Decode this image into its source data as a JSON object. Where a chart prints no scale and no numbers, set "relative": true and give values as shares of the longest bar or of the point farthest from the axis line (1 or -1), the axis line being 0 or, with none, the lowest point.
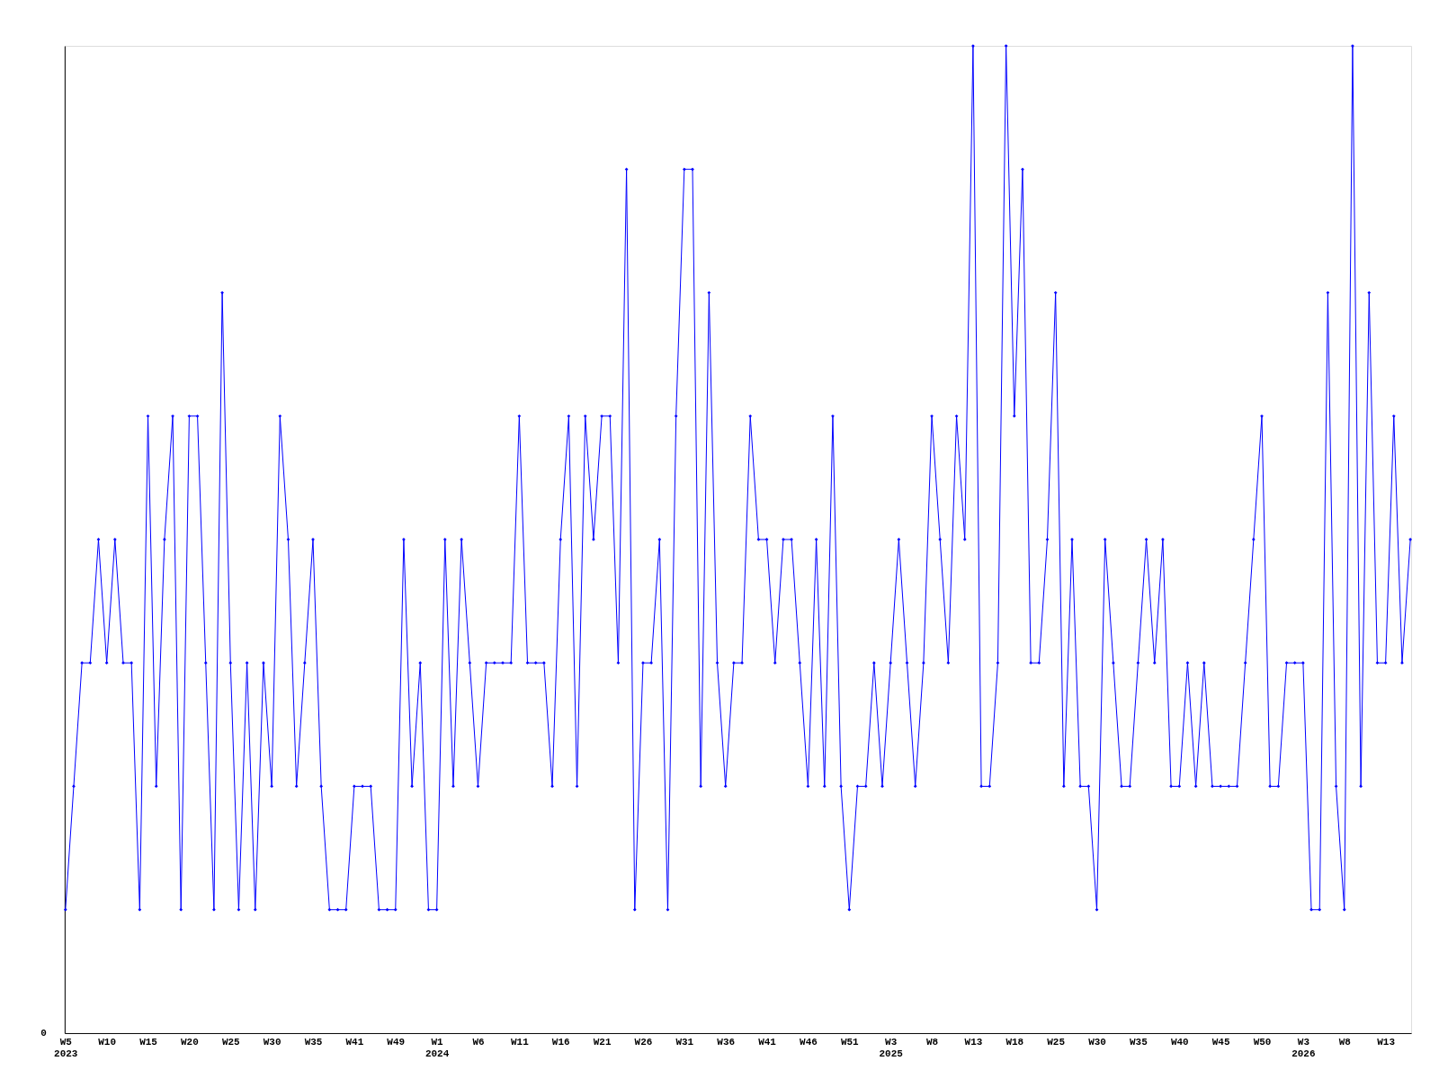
{
  "chart_data": {
    "type": "line",
    "relative": true,
    "marker": "diamond",
    "line_style": "solid",
    "grid": false,
    "categories": [
      "W5\n2023",
      null,
      null,
      null,
      null,
      "W10",
      null,
      null,
      null,
      null,
      "W15",
      null,
      null,
      null,
      null,
      "W20",
      null,
      null,
      null,
      null,
      "W25",
      null,
      null,
      null,
      null,
      "W30",
      null,
      null,
      null,
      null,
      "W35",
      null,
      null,
      null,
      null,
      "W41",
      null,
      null,
      null,
      null,
      "W49",
      null,
      null,
      null,
      null,
      "W1\n2024",
      null,
      null,
      null,
      null,
      "W6",
      null,
      null,
      null,
      null,
      "W11",
      null,
      null,
      null,
      null,
      "W16",
      null,
      null,
      null,
      null,
      "W21",
      null,
      null,
      null,
      null,
      "W26",
      null,
      null,
      null,
      null,
      "W31",
      null,
      null,
      null,
      null,
      "W36",
      null,
      null,
      null,
      null,
      "W41",
      null,
      null,
      null,
      null,
      "W46",
      null,
      null,
      null,
      null,
      "W51",
      null,
      null,
      null,
      null,
      "W3\n2025",
      null,
      null,
      null,
      null,
      "W8",
      null,
      null,
      null,
      null,
      "W13",
      null,
      null,
      null,
      null,
      "W18",
      null,
      null,
      null,
      null,
      "W25",
      null,
      null,
      null,
      null,
      "W30",
      null,
      null,
      null,
      null,
      "W35",
      null,
      null,
      null,
      null,
      "W40",
      null,
      null,
      null,
      null,
      "W45",
      null,
      null,
      null,
      null,
      "W50",
      null,
      null,
      null,
      null,
      "W3\n2026",
      null,
      null,
      null,
      null,
      "W8",
      null,
      null,
      null,
      null,
      "W13",
      null,
      null,
      null
    ],
    "series": [
      {
        "color": "#0000ff",
        "values": [
          0.125,
          0.25,
          0.375,
          0.375,
          0.5,
          0.375,
          0.5,
          0.375,
          0.375,
          0.125,
          0.625,
          0.25,
          0.5,
          0.625,
          0.125,
          0.625,
          0.625,
          0.375,
          0.125,
          0.75,
          0.375,
          0.125,
          0.375,
          0.125,
          0.375,
          0.25,
          0.625,
          0.5,
          0.25,
          0.375,
          0.5,
          0.25,
          0.125,
          0.125,
          0.125,
          0.25,
          0.25,
          0.25,
          0.125,
          0.125,
          0.125,
          0.5,
          0.25,
          0.375,
          0.125,
          0.125,
          0.5,
          0.25,
          0.5,
          0.375,
          0.25,
          0.375,
          0.375,
          0.375,
          0.375,
          0.625,
          0.375,
          0.375,
          0.375,
          0.25,
          0.5,
          0.625,
          0.25,
          0.625,
          0.5,
          0.625,
          0.625,
          0.375,
          0.875,
          0.125,
          0.375,
          0.375,
          0.5,
          0.125,
          0.625,
          0.875,
          0.875,
          0.25,
          0.75,
          0.375,
          0.25,
          0.375,
          0.375,
          0.625,
          0.5,
          0.5,
          0.375,
          0.5,
          0.5,
          0.375,
          0.25,
          0.5,
          0.25,
          0.625,
          0.25,
          0.125,
          0.25,
          0.25,
          0.375,
          0.25,
          0.375,
          0.5,
          0.375,
          0.25,
          0.375,
          0.625,
          0.5,
          0.375,
          0.625,
          0.5,
          1,
          0.25,
          0.25,
          0.375,
          1,
          0.625,
          0.875,
          0.375,
          0.375,
          0.5,
          0.75,
          0.25,
          0.5,
          0.25,
          0.25,
          0.125,
          0.5,
          0.375,
          0.25,
          0.25,
          0.375,
          0.5,
          0.375,
          0.5,
          0.25,
          0.25,
          0.375,
          0.25,
          0.375,
          0.25,
          0.25,
          0.25,
          0.25,
          0.375,
          0.5,
          0.625,
          0.25,
          0.25,
          0.375,
          0.375,
          0.375,
          0.125,
          0.125,
          0.75,
          0.25,
          0.125,
          1,
          0.25,
          0.75,
          0.375,
          0.375,
          0.625,
          0.375,
          0.5
        ]
      }
    ],
    "annotations": [
      "0"
    ]
  }
}
